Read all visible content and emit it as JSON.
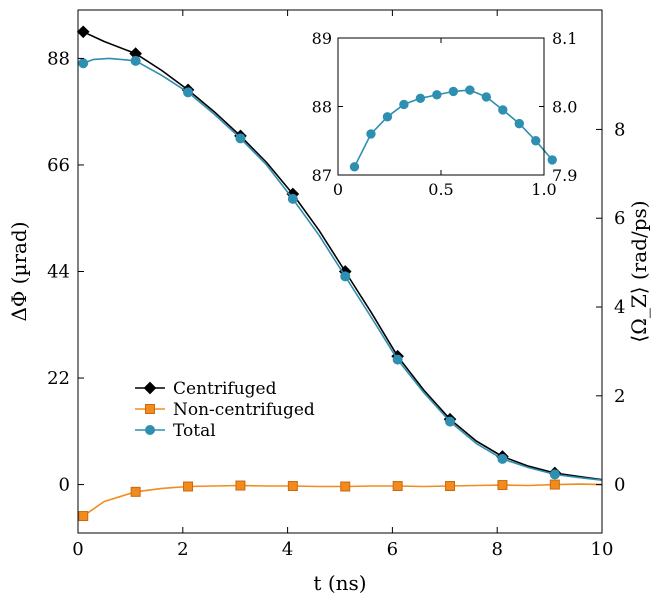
{
  "chart_data": [
    {
      "type": "line",
      "xlabel": "t (ns)",
      "ylabel": "ΔΦ (µrad)",
      "y2label": "⟨Ω_Z⟩ (rad/ps)",
      "xlim": [
        0,
        10
      ],
      "ylim": [
        -10,
        98
      ],
      "y2lim": [
        -1.09,
        10.69
      ],
      "xticks": [
        0,
        2,
        4,
        6,
        8,
        10
      ],
      "yticks": [
        0,
        22,
        44,
        66,
        88
      ],
      "y2ticks": [
        0,
        2,
        4,
        6,
        8
      ],
      "grid": false,
      "legend_position": "lower-left",
      "series": [
        {
          "name": "Centrifuged",
          "color": "#000000",
          "marker": "diamond",
          "x": [
            0.1,
            0.5,
            1.1,
            1.6,
            2.1,
            2.6,
            3.1,
            3.6,
            4.1,
            4.6,
            5.1,
            5.6,
            6.1,
            6.6,
            7.1,
            7.6,
            8.1,
            8.6,
            9.1,
            9.6,
            10.0
          ],
          "y": [
            93.5,
            91.5,
            89.0,
            85.5,
            81.5,
            77.0,
            72.0,
            66.5,
            60.0,
            52.5,
            44.0,
            35.5,
            26.5,
            19.5,
            13.5,
            9.0,
            5.8,
            3.8,
            2.4,
            1.6,
            1.0
          ]
        },
        {
          "name": "Non-centrifuged",
          "color": "#f28b1e",
          "marker": "square",
          "x": [
            0.1,
            0.5,
            1.1,
            1.6,
            2.1,
            2.6,
            3.1,
            3.6,
            4.1,
            4.6,
            5.1,
            5.6,
            6.1,
            6.6,
            7.1,
            7.6,
            8.1,
            8.6,
            9.1,
            9.6,
            10.0
          ],
          "y": [
            -6.5,
            -3.5,
            -1.5,
            -0.8,
            -0.4,
            -0.3,
            -0.2,
            -0.3,
            -0.3,
            -0.4,
            -0.4,
            -0.3,
            -0.3,
            -0.4,
            -0.3,
            -0.2,
            -0.1,
            -0.2,
            0.0,
            0.1,
            0.0
          ]
        },
        {
          "name": "Total",
          "color": "#2e8fb0",
          "marker": "circle",
          "x": [
            0.1,
            0.3,
            0.6,
            1.1,
            1.6,
            2.1,
            2.6,
            3.1,
            3.6,
            4.1,
            4.6,
            5.1,
            5.6,
            6.1,
            6.6,
            7.1,
            7.6,
            8.1,
            8.6,
            9.1,
            9.6,
            10.0
          ],
          "y": [
            87.0,
            87.8,
            88.0,
            87.5,
            84.5,
            81.0,
            76.5,
            71.5,
            66.0,
            59.0,
            51.5,
            43.0,
            34.5,
            25.8,
            19.0,
            13.0,
            8.5,
            5.3,
            3.5,
            2.1,
            1.4,
            0.9
          ]
        }
      ]
    },
    {
      "type": "line",
      "inset": true,
      "xlim": [
        0,
        1.0
      ],
      "ylim": [
        87,
        89
      ],
      "y2lim": [
        7.9,
        8.1
      ],
      "xticks": [
        0,
        0.5,
        1.0
      ],
      "yticks": [
        87,
        88,
        89
      ],
      "y2ticks": [
        7.9,
        8.0,
        8.1
      ],
      "grid": false,
      "series": [
        {
          "color": "#2e8fb0",
          "marker": "circle",
          "x": [
            0.08,
            0.16,
            0.24,
            0.32,
            0.4,
            0.48,
            0.56,
            0.64,
            0.72,
            0.8,
            0.88,
            0.96,
            1.04
          ],
          "y": [
            87.12,
            87.6,
            87.85,
            88.03,
            88.12,
            88.17,
            88.22,
            88.24,
            88.14,
            87.95,
            87.75,
            87.5,
            87.22
          ]
        }
      ]
    }
  ]
}
